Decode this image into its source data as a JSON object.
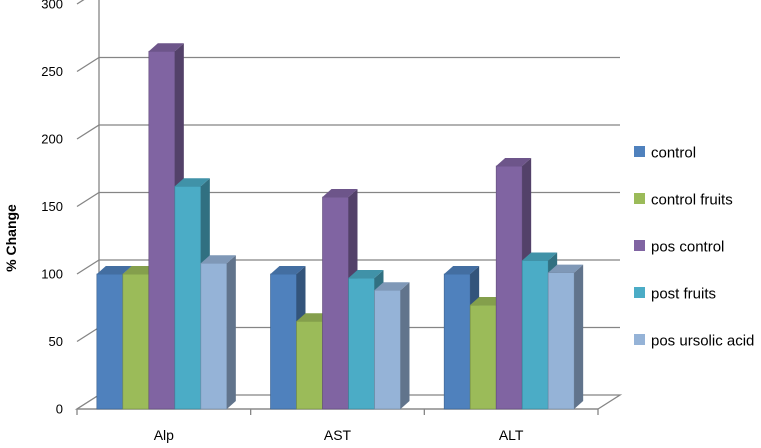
{
  "chart_data": {
    "type": "bar",
    "categories": [
      "Alp",
      "AST",
      "ALT"
    ],
    "series": [
      {
        "name": "control",
        "values": [
          100,
          100,
          100
        ],
        "color": "#4F81BD"
      },
      {
        "name": "control fruits",
        "values": [
          100,
          65,
          77
        ],
        "color": "#9BBB59"
      },
      {
        "name": "pos control",
        "values": [
          265,
          157,
          180
        ],
        "color": "#8064A2"
      },
      {
        "name": "post fruits",
        "values": [
          165,
          97,
          110
        ],
        "color": "#4BACC6"
      },
      {
        "name": "pos ursolic acid",
        "values": [
          108,
          88,
          101
        ],
        "color": "#95B3D7"
      }
    ],
    "ylabel": "% Change",
    "ylim": [
      0,
      300
    ],
    "yticks": [
      0,
      50,
      100,
      150,
      200,
      250,
      300
    ],
    "grid": true,
    "legend": "right",
    "three_d": true
  }
}
